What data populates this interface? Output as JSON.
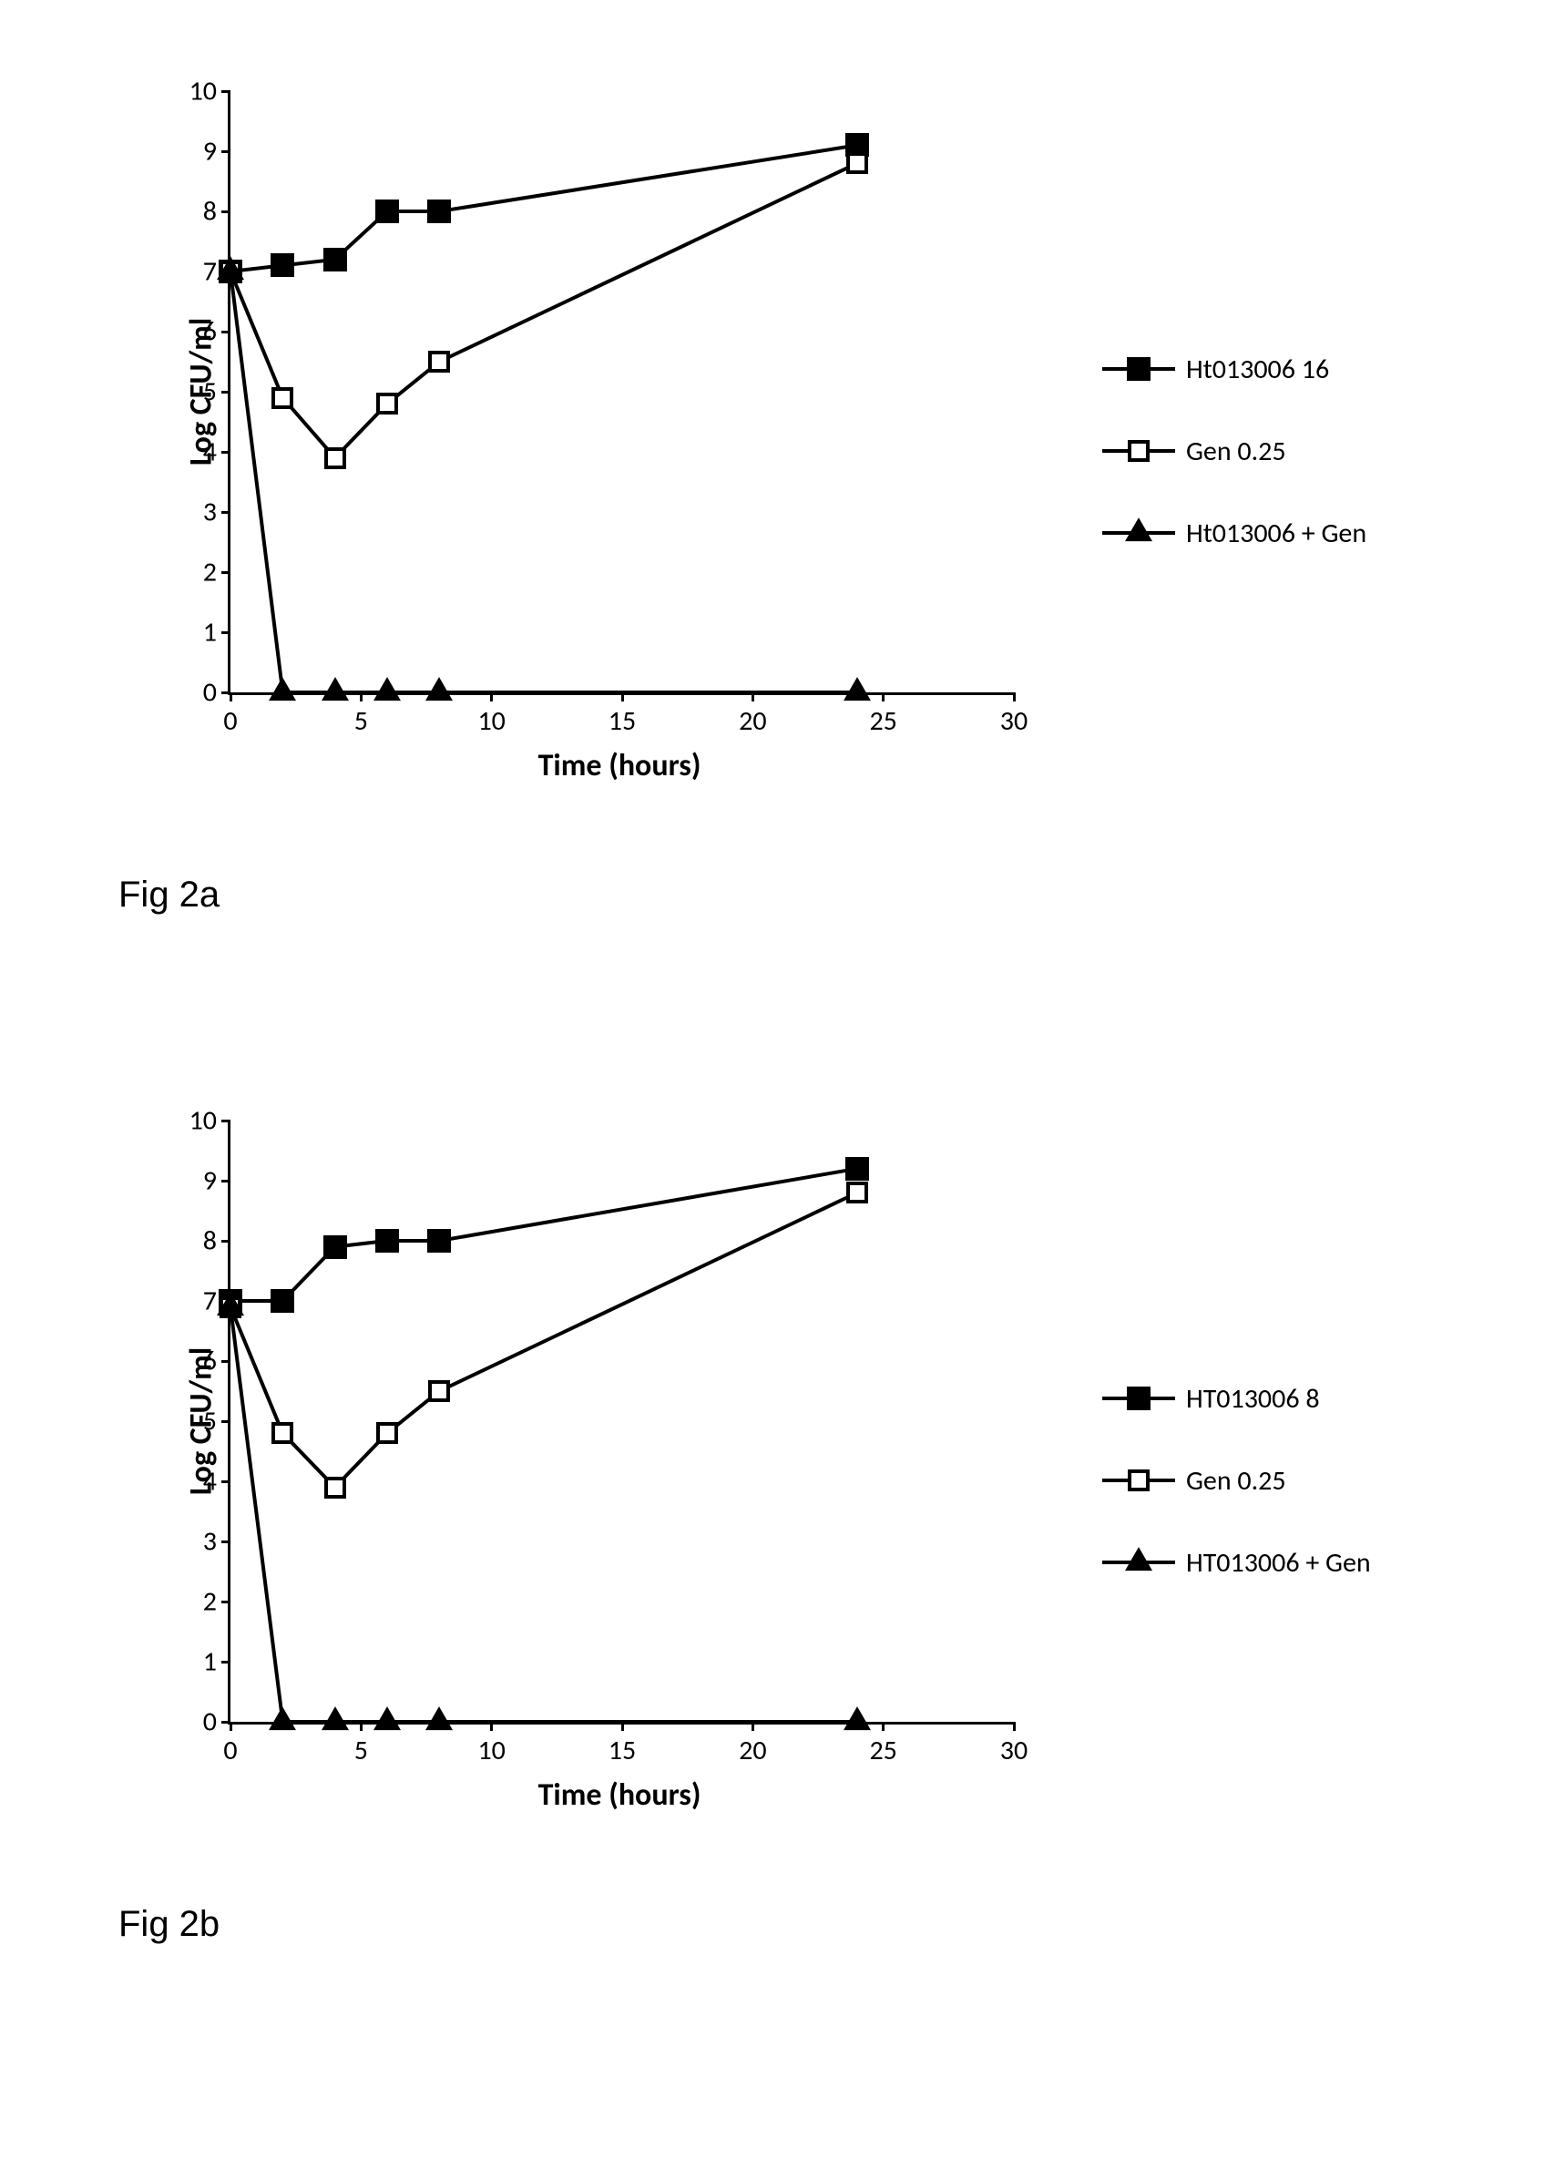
{
  "charts": [
    {
      "id": "fig2a",
      "caption": "Fig 2a",
      "xlabel": "Time (hours)",
      "ylabel": "Log CFU/ml",
      "xlim": [
        0,
        30
      ],
      "ylim": [
        0,
        10
      ],
      "xticks": [
        0,
        5,
        10,
        15,
        20,
        25,
        30
      ],
      "yticks": [
        0,
        1,
        2,
        3,
        4,
        5,
        6,
        7,
        8,
        9,
        10
      ],
      "axis_color": "#000000",
      "background_color": "#ffffff",
      "line_color": "#000000",
      "line_width": 4,
      "label_fontsize": 34,
      "tick_fontsize": 30,
      "legend_fontsize": 30,
      "marker_size": 26,
      "series": [
        {
          "label": "Ht013006 16",
          "marker": "square-filled",
          "x": [
            0,
            2,
            4,
            6,
            8,
            24
          ],
          "y": [
            7.0,
            7.1,
            7.2,
            8.0,
            8.0,
            9.1
          ]
        },
        {
          "label": "Gen 0.25",
          "marker": "square-open",
          "x": [
            0,
            2,
            4,
            6,
            8,
            24
          ],
          "y": [
            7.0,
            4.9,
            3.9,
            4.8,
            5.5,
            8.8
          ]
        },
        {
          "label": "Ht013006 + Gen",
          "marker": "triangle-filled",
          "x": [
            0,
            2,
            4,
            6,
            8,
            24
          ],
          "y": [
            7.0,
            0.0,
            0.0,
            0.0,
            0.0,
            0.0
          ]
        }
      ]
    },
    {
      "id": "fig2b",
      "caption": "Fig 2b",
      "xlabel": "Time (hours)",
      "ylabel": "Log CFU/ml",
      "xlim": [
        0,
        30
      ],
      "ylim": [
        0,
        10
      ],
      "xticks": [
        0,
        5,
        10,
        15,
        20,
        25,
        30
      ],
      "yticks": [
        0,
        1,
        2,
        3,
        4,
        5,
        6,
        7,
        8,
        9,
        10
      ],
      "axis_color": "#000000",
      "background_color": "#ffffff",
      "line_color": "#000000",
      "line_width": 4,
      "label_fontsize": 34,
      "tick_fontsize": 30,
      "legend_fontsize": 30,
      "marker_size": 26,
      "series": [
        {
          "label": "HT013006 8",
          "marker": "square-filled",
          "x": [
            0,
            2,
            4,
            6,
            8,
            24
          ],
          "y": [
            7.0,
            7.0,
            7.9,
            8.0,
            8.0,
            9.2
          ]
        },
        {
          "label": "Gen 0.25",
          "marker": "square-open",
          "x": [
            0,
            2,
            4,
            6,
            8,
            24
          ],
          "y": [
            6.9,
            4.8,
            3.9,
            4.8,
            5.5,
            8.8
          ]
        },
        {
          "label": "HT013006 + Gen",
          "marker": "triangle-filled",
          "x": [
            0,
            2,
            4,
            6,
            8,
            24
          ],
          "y": [
            6.9,
            0.0,
            0.0,
            0.0,
            0.0,
            0.0
          ]
        }
      ]
    }
  ]
}
